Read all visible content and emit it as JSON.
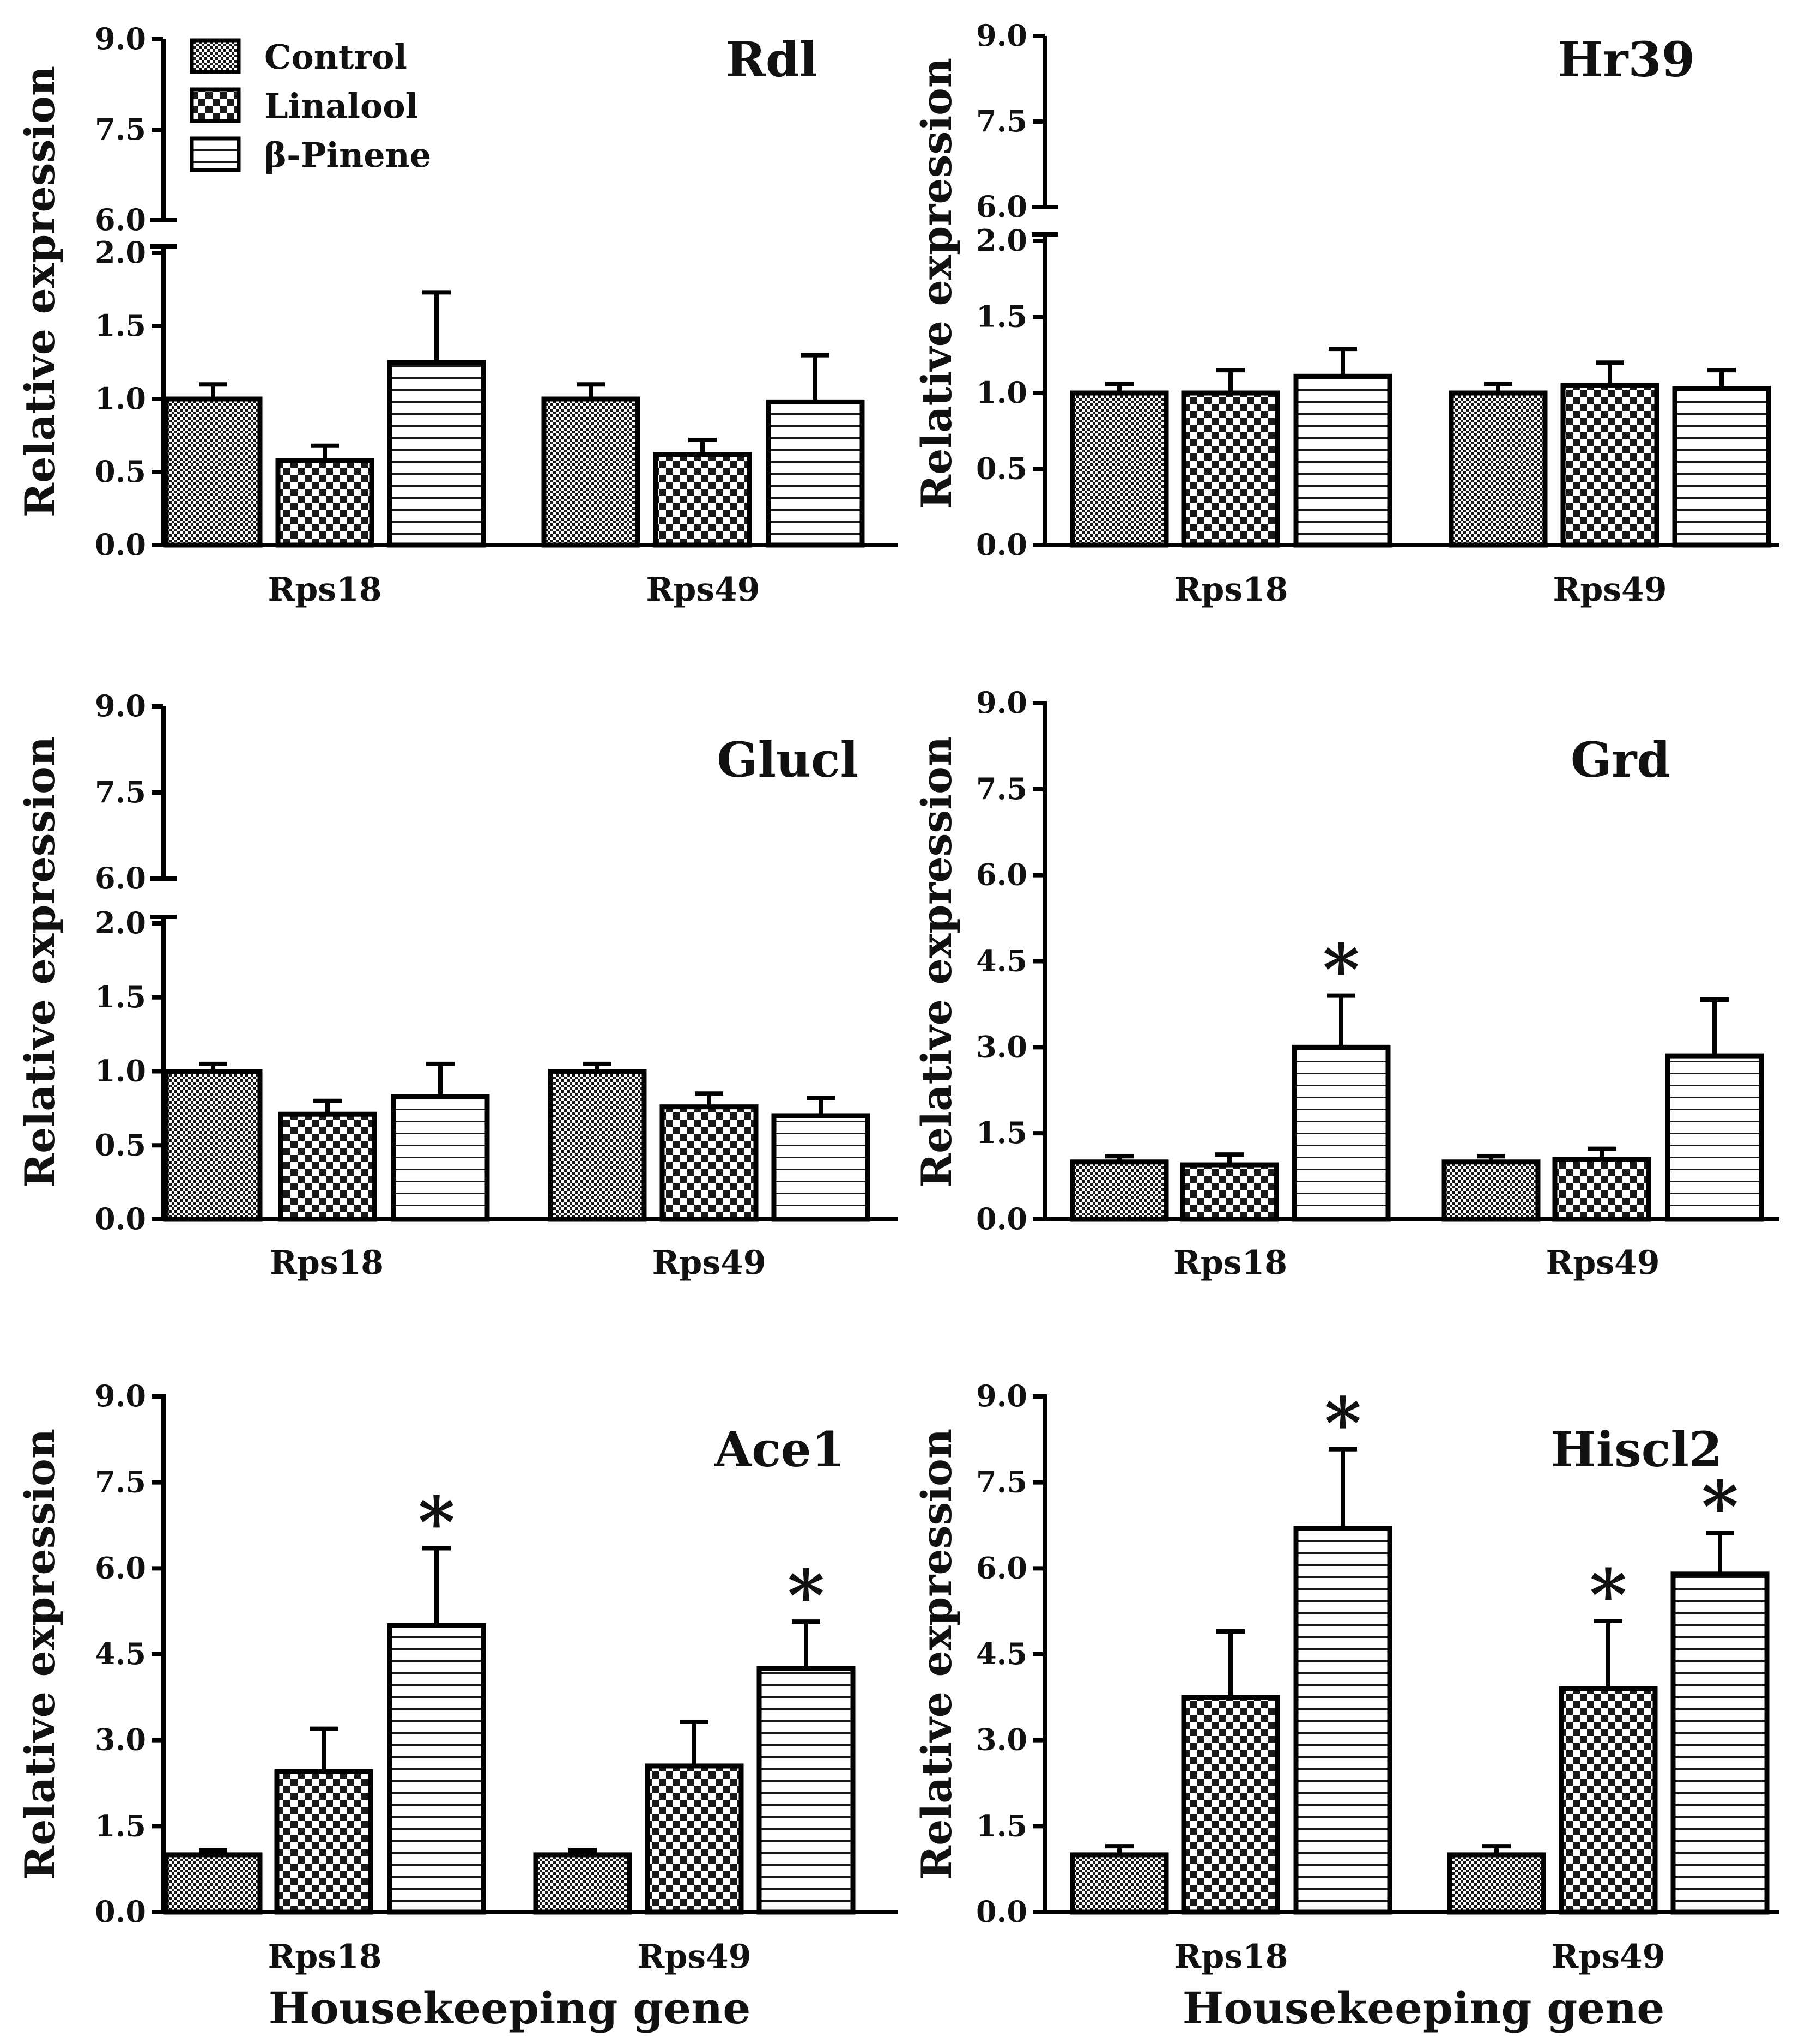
{
  "figure": {
    "legend": [
      "Control",
      "Linalool",
      "β-Pinene"
    ],
    "ylabel": "Relative expression",
    "xlabel": "Housekeeping gene"
  },
  "chart_data": [
    {
      "type": "bar",
      "title": "Rdl",
      "categories": [
        "Rps18",
        "Rps49"
      ],
      "ylabel": "Relative expression",
      "xlabel": "",
      "axis": "broken",
      "ylim_lower": [
        0,
        2.0
      ],
      "ylim_upper": [
        6.0,
        9.0
      ],
      "yticks_lower": [
        "0.0",
        "0.5",
        "1.0",
        "1.5",
        "2.0"
      ],
      "yticks_upper": [
        "6.0",
        "7.5",
        "9.0"
      ],
      "series": [
        {
          "name": "Control",
          "values": [
            1.0,
            1.0
          ],
          "errors": [
            0.1,
            0.1
          ],
          "significant": [
            false,
            false
          ]
        },
        {
          "name": "Linalool",
          "values": [
            0.58,
            0.62
          ],
          "errors": [
            0.1,
            0.1
          ],
          "significant": [
            false,
            false
          ]
        },
        {
          "name": "β-Pinene",
          "values": [
            1.25,
            0.98
          ],
          "errors": [
            0.48,
            0.32
          ],
          "significant": [
            false,
            false
          ]
        }
      ]
    },
    {
      "type": "bar",
      "title": "Hr39",
      "categories": [
        "Rps18",
        "Rps49"
      ],
      "ylabel": "Relative expression",
      "xlabel": "",
      "axis": "broken",
      "ylim_lower": [
        0,
        2.0
      ],
      "ylim_upper": [
        6.0,
        9.0
      ],
      "yticks_lower": [
        "0.0",
        "0.5",
        "1.0",
        "1.5",
        "2.0"
      ],
      "yticks_upper": [
        "6.0",
        "7.5",
        "9.0"
      ],
      "series": [
        {
          "name": "Control",
          "values": [
            1.0,
            1.0
          ],
          "errors": [
            0.06,
            0.06
          ],
          "significant": [
            false,
            false
          ]
        },
        {
          "name": "Linalool",
          "values": [
            1.0,
            1.05
          ],
          "errors": [
            0.15,
            0.15
          ],
          "significant": [
            false,
            false
          ]
        },
        {
          "name": "β-Pinene",
          "values": [
            1.11,
            1.03
          ],
          "errors": [
            0.18,
            0.12
          ],
          "significant": [
            false,
            false
          ]
        }
      ]
    },
    {
      "type": "bar",
      "title": "Glucl",
      "categories": [
        "Rps18",
        "Rps49"
      ],
      "ylabel": "Relative expression",
      "xlabel": "",
      "axis": "broken",
      "ylim_lower": [
        0,
        2.0
      ],
      "ylim_upper": [
        6.0,
        9.0
      ],
      "yticks_lower": [
        "0.0",
        "0.5",
        "1.0",
        "1.5",
        "2.0"
      ],
      "yticks_upper": [
        "6.0",
        "7.5",
        "9.0"
      ],
      "series": [
        {
          "name": "Control",
          "values": [
            1.0,
            1.0
          ],
          "errors": [
            0.05,
            0.05
          ],
          "significant": [
            false,
            false
          ]
        },
        {
          "name": "Linalool",
          "values": [
            0.71,
            0.76
          ],
          "errors": [
            0.09,
            0.09
          ],
          "significant": [
            false,
            false
          ]
        },
        {
          "name": "β-Pinene",
          "values": [
            0.83,
            0.7
          ],
          "errors": [
            0.22,
            0.12
          ],
          "significant": [
            false,
            false
          ]
        }
      ]
    },
    {
      "type": "bar",
      "title": "Grd",
      "categories": [
        "Rps18",
        "Rps49"
      ],
      "ylabel": "Relative expression",
      "xlabel": "",
      "axis": "linear",
      "ylim": [
        0,
        9.0
      ],
      "yticks": [
        "0.0",
        "1.5",
        "3.0",
        "4.5",
        "6.0",
        "7.5",
        "9.0"
      ],
      "series": [
        {
          "name": "Control",
          "values": [
            1.0,
            1.0
          ],
          "errors": [
            0.1,
            0.1
          ],
          "significant": [
            false,
            false
          ]
        },
        {
          "name": "Linalool",
          "values": [
            0.95,
            1.05
          ],
          "errors": [
            0.18,
            0.18
          ],
          "significant": [
            false,
            false
          ]
        },
        {
          "name": "β-Pinene",
          "values": [
            3.0,
            2.85
          ],
          "errors": [
            0.9,
            0.98
          ],
          "significant": [
            true,
            false
          ]
        }
      ]
    },
    {
      "type": "bar",
      "title": "Ace1",
      "categories": [
        "Rps18",
        "Rps49"
      ],
      "ylabel": "Relative expression",
      "xlabel": "Housekeeping gene",
      "axis": "linear",
      "ylim": [
        0,
        9.0
      ],
      "yticks": [
        "0.0",
        "1.5",
        "3.0",
        "4.5",
        "6.0",
        "7.5",
        "9.0"
      ],
      "series": [
        {
          "name": "Control",
          "values": [
            1.0,
            1.0
          ],
          "errors": [
            0.08,
            0.08
          ],
          "significant": [
            false,
            false
          ]
        },
        {
          "name": "Linalool",
          "values": [
            2.45,
            2.55
          ],
          "errors": [
            0.75,
            0.77
          ],
          "significant": [
            false,
            false
          ]
        },
        {
          "name": "β-Pinene",
          "values": [
            5.0,
            4.25
          ],
          "errors": [
            1.35,
            0.82
          ],
          "significant": [
            true,
            true
          ]
        }
      ]
    },
    {
      "type": "bar",
      "title": "Hiscl2",
      "categories": [
        "Rps18",
        "Rps49"
      ],
      "ylabel": "Relative expression",
      "xlabel": "Housekeeping gene",
      "axis": "linear",
      "ylim": [
        0,
        9.0
      ],
      "yticks": [
        "0.0",
        "1.5",
        "3.0",
        "4.5",
        "6.0",
        "7.5",
        "9.0"
      ],
      "series": [
        {
          "name": "Control",
          "values": [
            1.0,
            1.0
          ],
          "errors": [
            0.15,
            0.15
          ],
          "significant": [
            false,
            false
          ]
        },
        {
          "name": "Linalool",
          "values": [
            3.75,
            3.9
          ],
          "errors": [
            1.15,
            1.18
          ],
          "significant": [
            false,
            true
          ]
        },
        {
          "name": "β-Pinene",
          "values": [
            6.7,
            5.9
          ],
          "errors": [
            1.38,
            0.72
          ],
          "significant": [
            true,
            true
          ]
        }
      ]
    }
  ]
}
